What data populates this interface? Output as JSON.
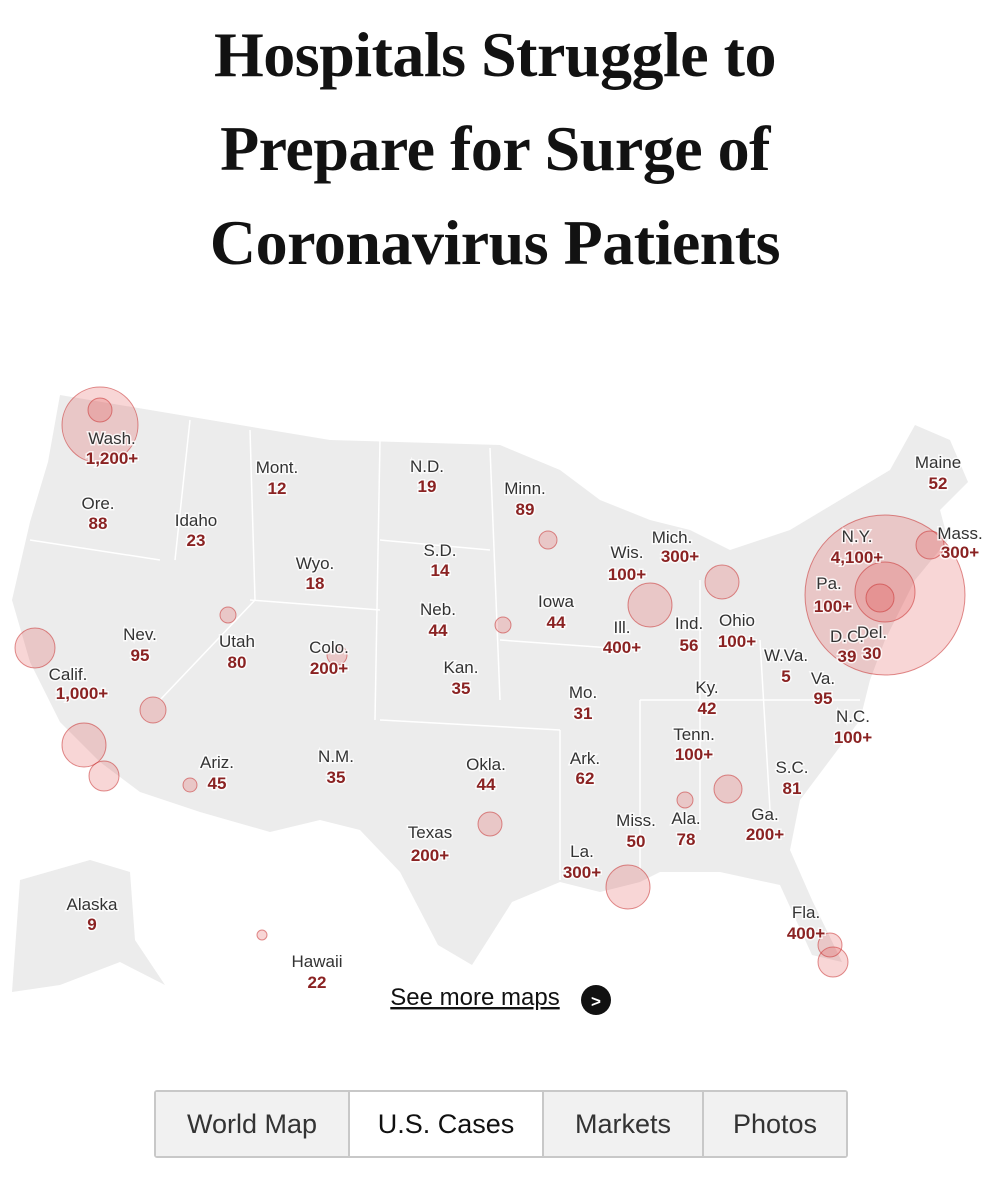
{
  "header": {
    "title": "Hospitals Struggle to Prepare for Surge of Coronavirus Patients"
  },
  "map": {
    "states": [
      {
        "name": "Wash.",
        "cases": "1,200+"
      },
      {
        "name": "Mont.",
        "cases": "12"
      },
      {
        "name": "N.D.",
        "cases": "19"
      },
      {
        "name": "Minn.",
        "cases": "89"
      },
      {
        "name": "Maine",
        "cases": "52"
      },
      {
        "name": "Ore.",
        "cases": "88"
      },
      {
        "name": "Idaho",
        "cases": "23"
      },
      {
        "name": "Mich.",
        "cases": "300+"
      },
      {
        "name": "Wis.",
        "cases": "100+"
      },
      {
        "name": "N.Y.",
        "cases": "4,100+"
      },
      {
        "name": "Mass.",
        "cases": "300+"
      },
      {
        "name": "S.D.",
        "cases": "14"
      },
      {
        "name": "Wyo.",
        "cases": "18"
      },
      {
        "name": "Pa.",
        "cases": "100+"
      },
      {
        "name": "Iowa",
        "cases": "44"
      },
      {
        "name": "Neb.",
        "cases": "44"
      },
      {
        "name": "Ill.",
        "cases": "400+"
      },
      {
        "name": "Ind.",
        "cases": "56"
      },
      {
        "name": "Ohio",
        "cases": "100+"
      },
      {
        "name": "Nev.",
        "cases": "95"
      },
      {
        "name": "Utah",
        "cases": "80"
      },
      {
        "name": "Colo.",
        "cases": "200+"
      },
      {
        "name": "D.C.",
        "cases": "39"
      },
      {
        "name": "Del.",
        "cases": "30"
      },
      {
        "name": "W.Va.",
        "cases": "5"
      },
      {
        "name": "Calif.",
        "cases": "1,000+"
      },
      {
        "name": "Kan.",
        "cases": "35"
      },
      {
        "name": "Va.",
        "cases": "95"
      },
      {
        "name": "Mo.",
        "cases": "31"
      },
      {
        "name": "Ky.",
        "cases": "42"
      },
      {
        "name": "N.C.",
        "cases": "100+"
      },
      {
        "name": "Tenn.",
        "cases": "100+"
      },
      {
        "name": "S.C.",
        "cases": "81"
      },
      {
        "name": "Ariz.",
        "cases": "45"
      },
      {
        "name": "N.M.",
        "cases": "35"
      },
      {
        "name": "Okla.",
        "cases": "44"
      },
      {
        "name": "Ark.",
        "cases": "62"
      },
      {
        "name": "Miss.",
        "cases": "50"
      },
      {
        "name": "Ala.",
        "cases": "78"
      },
      {
        "name": "Ga.",
        "cases": "200+"
      },
      {
        "name": "Texas",
        "cases": "200+"
      },
      {
        "name": "La.",
        "cases": "300+"
      },
      {
        "name": "Fla.",
        "cases": "400+"
      },
      {
        "name": "Alaska",
        "cases": "9"
      },
      {
        "name": "Hawaii",
        "cases": "22"
      }
    ],
    "link": "See more maps",
    "link_icon": ">"
  },
  "tabs": [
    "World Map",
    "U.S. Cases",
    "Markets",
    "Photos"
  ]
}
